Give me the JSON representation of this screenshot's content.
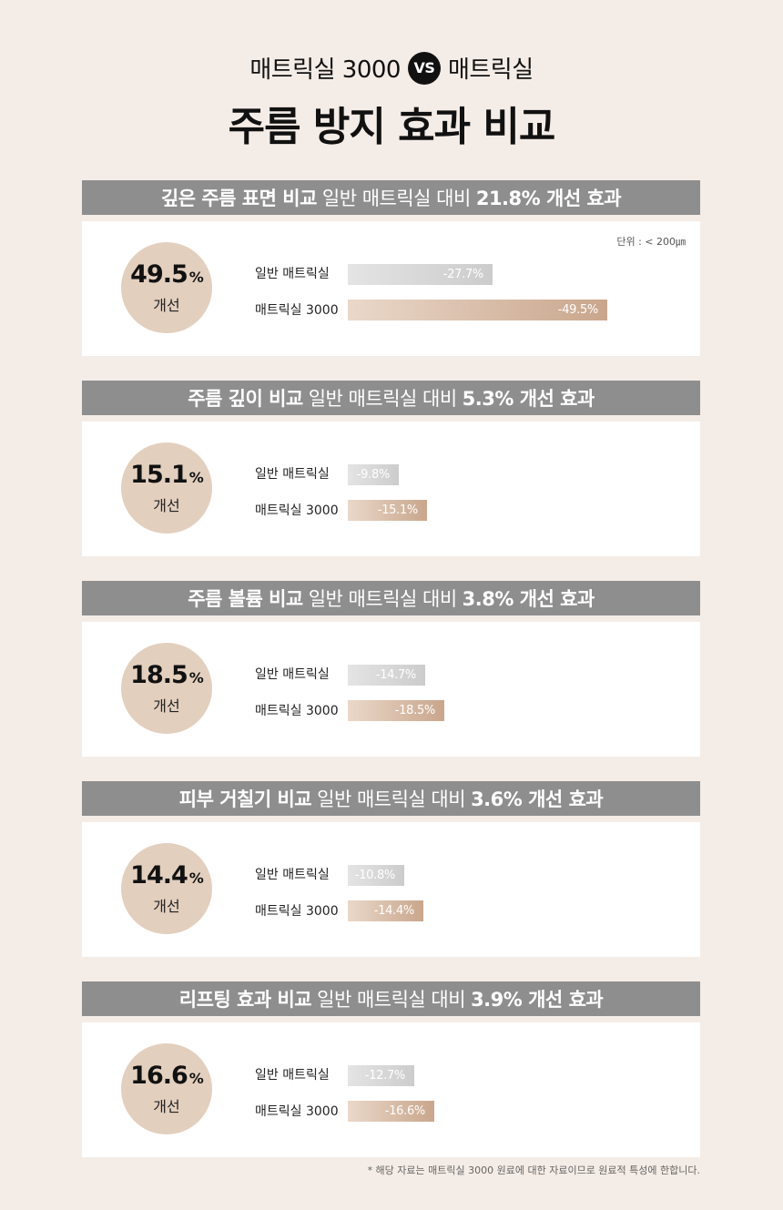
{
  "header": {
    "left_product": "매트릭실 3000",
    "vs_label": "VS",
    "right_product": "매트릭실",
    "title": "주름 방지 효과 비교"
  },
  "chart_data": [
    {
      "type": "bar",
      "title_bold_left": "깊은 주름 표면 비교",
      "title_normal": "일반 매트릭실 대비",
      "title_bold_right": "21.8% 개선 효과",
      "badge_value": "49.5",
      "badge_unit": "%",
      "badge_label": "개선",
      "unit_note": "단위 : < 200㎛",
      "categories": [
        "일반 매트릭실",
        "매트릭실 3000"
      ],
      "values": [
        -27.7,
        -49.5
      ],
      "value_labels": [
        "-27.7%",
        "-49.5%"
      ]
    },
    {
      "type": "bar",
      "title_bold_left": "주름 깊이 비교",
      "title_normal": "일반 매트릭실 대비",
      "title_bold_right": "5.3% 개선 효과",
      "badge_value": "15.1",
      "badge_unit": "%",
      "badge_label": "개선",
      "unit_note": "",
      "categories": [
        "일반 매트릭실",
        "매트릭실 3000"
      ],
      "values": [
        -9.8,
        -15.1
      ],
      "value_labels": [
        "-9.8%",
        "-15.1%"
      ]
    },
    {
      "type": "bar",
      "title_bold_left": "주름 볼륨 비교",
      "title_normal": "일반 매트릭실 대비",
      "title_bold_right": "3.8% 개선 효과",
      "badge_value": "18.5",
      "badge_unit": "%",
      "badge_label": "개선",
      "unit_note": "",
      "categories": [
        "일반 매트릭실",
        "매트릭실 3000"
      ],
      "values": [
        -14.7,
        -18.5
      ],
      "value_labels": [
        "-14.7%",
        "-18.5%"
      ]
    },
    {
      "type": "bar",
      "title_bold_left": "피부 거칠기 비교",
      "title_normal": "일반 매트릭실 대비",
      "title_bold_right": "3.6% 개선 효과",
      "badge_value": "14.4",
      "badge_unit": "%",
      "badge_label": "개선",
      "unit_note": "",
      "categories": [
        "일반 매트릭실",
        "매트릭실 3000"
      ],
      "values": [
        -10.8,
        -14.4
      ],
      "value_labels": [
        "-10.8%",
        "-14.4%"
      ]
    },
    {
      "type": "bar",
      "title_bold_left": "리프팅 효과 비교",
      "title_normal": "일반 매트릭실 대비",
      "title_bold_right": "3.9% 개선 효과",
      "badge_value": "16.6",
      "badge_unit": "%",
      "badge_label": "개선",
      "unit_note": "",
      "categories": [
        "일반 매트릭실",
        "매트릭실 3000"
      ],
      "values": [
        -12.7,
        -16.6
      ],
      "value_labels": [
        "-12.7%",
        "-16.6%"
      ]
    }
  ],
  "footnote": "* 해당 자료는 매트릭실 3000 원료에 대한 자료이므로 원료적 특성에 한합니다.",
  "colors": {
    "background": "#f4ece6",
    "section_bar": "#8e8e8e",
    "badge": "#e3cfbe",
    "general_bar": "#d6d6d6",
    "matrixyl_bar": "#c9a68c"
  }
}
